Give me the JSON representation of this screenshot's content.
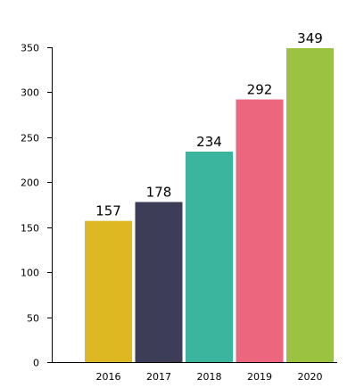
{
  "chart_data": {
    "type": "bar",
    "categories": [
      "2016",
      "2017",
      "2018",
      "2019",
      "2020"
    ],
    "values": [
      157,
      178,
      234,
      292,
      349
    ],
    "bar_colors": [
      "#DDB823",
      "#3E3D58",
      "#3BB59D",
      "#EC667D",
      "#9BC341"
    ],
    "title": "",
    "xlabel": "",
    "ylabel": "",
    "ylim": [
      0,
      350
    ],
    "yticks": [
      0,
      50,
      100,
      150,
      200,
      250,
      300,
      350
    ],
    "grid": false,
    "legend": "none",
    "data_labels": true
  }
}
